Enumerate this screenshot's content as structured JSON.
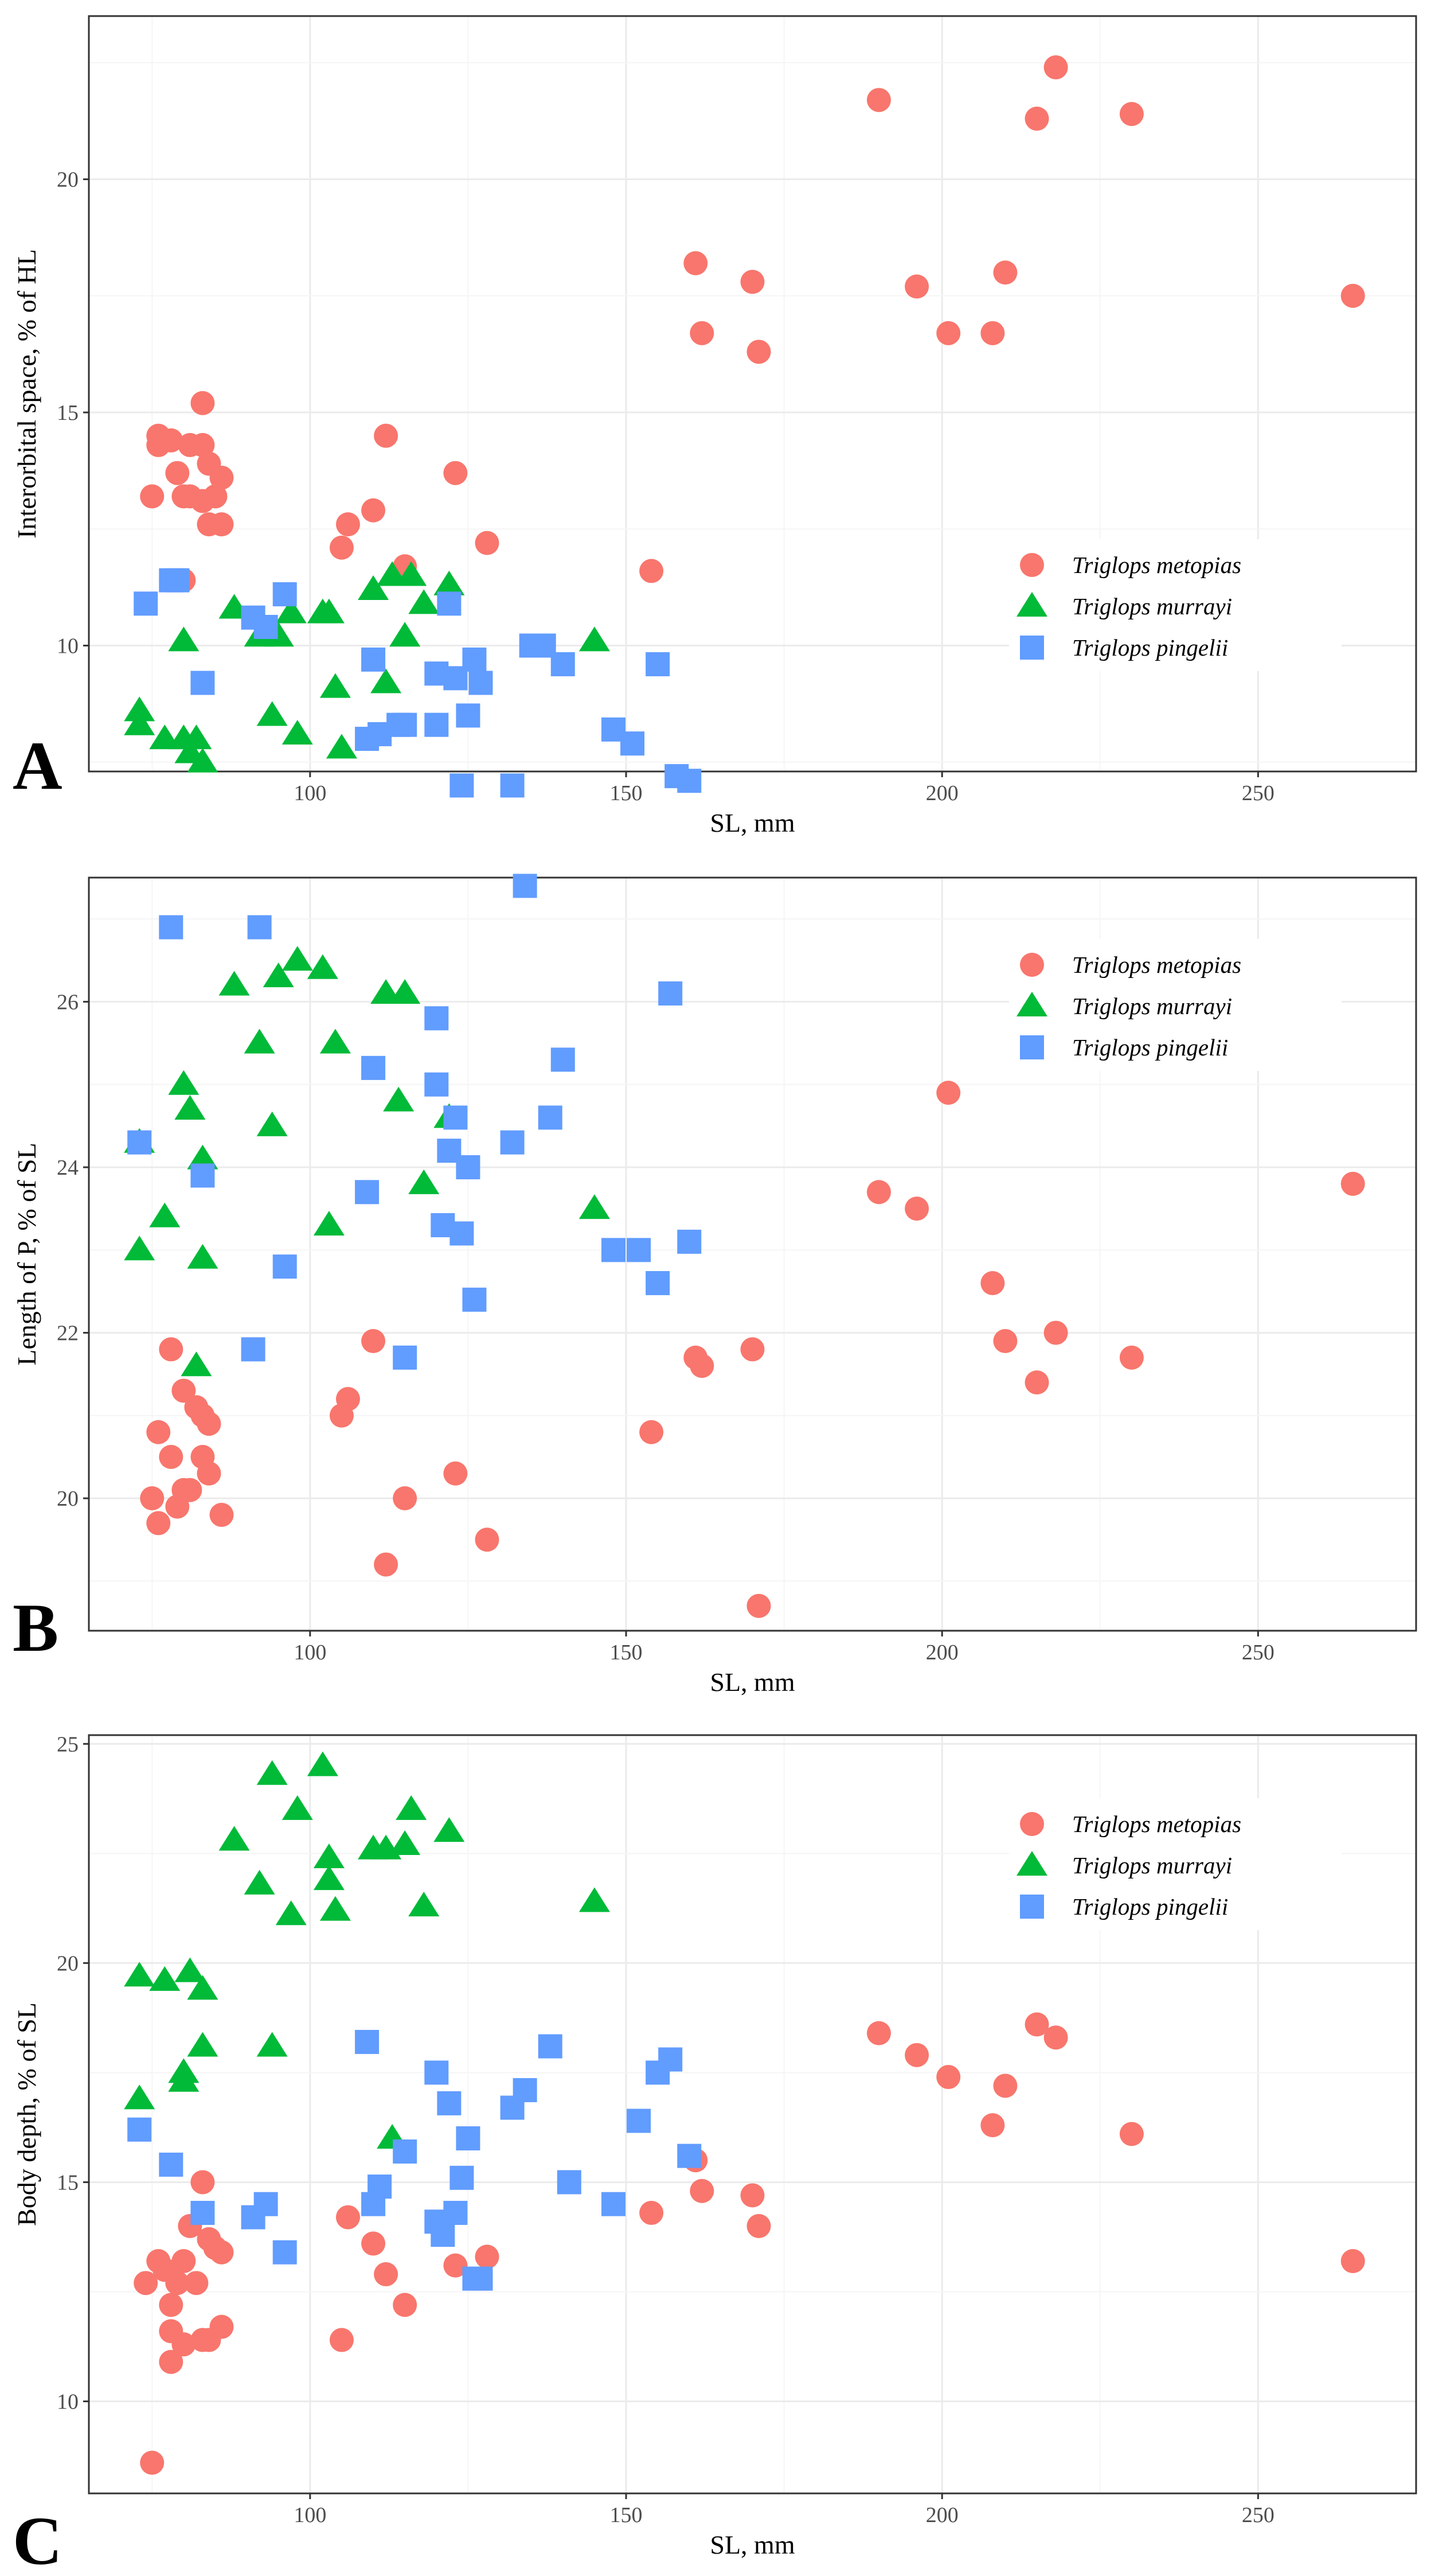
{
  "chart_data": [
    {
      "panel": "A",
      "type": "scatter",
      "xlabel": "SL, mm",
      "ylabel": "Interorbital space, % of HL",
      "xlim": [
        65,
        275
      ],
      "ylim": [
        7.3,
        23.5
      ],
      "xticks": [
        100,
        150,
        200,
        250
      ],
      "yticks": [
        10,
        15,
        20
      ],
      "grid": true,
      "legend_position": "right",
      "series": [
        {
          "name": "Triglops metopias",
          "color": "#F8766D",
          "marker": "circle",
          "x": [
            75,
            76,
            76,
            78,
            78,
            79,
            80,
            80,
            81,
            81,
            83,
            83,
            83,
            84,
            84,
            85,
            86,
            86,
            105,
            106,
            110,
            112,
            115,
            123,
            128,
            154,
            161,
            162,
            170,
            171,
            190,
            196,
            201,
            208,
            210,
            215,
            218,
            230,
            265
          ],
          "y": [
            13.2,
            14.5,
            14.3,
            11.4,
            14.4,
            13.7,
            13.2,
            11.4,
            14.3,
            13.2,
            15.2,
            14.3,
            13.1,
            12.6,
            13.9,
            13.2,
            13.6,
            12.6,
            12.1,
            12.6,
            12.9,
            14.5,
            11.7,
            13.7,
            12.2,
            11.6,
            18.2,
            16.7,
            17.8,
            16.3,
            21.7,
            17.7,
            16.7,
            16.7,
            18.0,
            21.3,
            22.4,
            21.4,
            17.5
          ]
        },
        {
          "name": "Triglops murrayi",
          "color": "#00BA38",
          "marker": "triangle",
          "x": [
            73,
            73,
            77,
            80,
            80,
            81,
            82,
            83,
            88,
            92,
            94,
            95,
            97,
            98,
            102,
            104,
            103,
            105,
            110,
            112,
            113,
            115,
            116,
            118,
            122,
            145
          ],
          "y": [
            8.6,
            8.3,
            8.0,
            10.1,
            8.0,
            7.7,
            8.0,
            7.5,
            10.8,
            10.2,
            8.5,
            10.2,
            10.7,
            8.1,
            10.7,
            9.1,
            10.7,
            7.8,
            11.2,
            9.2,
            11.5,
            10.2,
            11.5,
            10.9,
            11.3,
            10.1
          ]
        },
        {
          "name": "Triglops pingelii",
          "color": "#619CFF",
          "marker": "square",
          "x": [
            74,
            78,
            79,
            83,
            91,
            93,
            96,
            109,
            110,
            111,
            114,
            115,
            120,
            120,
            122,
            123,
            124,
            125,
            126,
            127,
            132,
            135,
            137,
            140,
            148,
            151,
            155,
            158,
            160
          ],
          "y": [
            10.9,
            11.4,
            11.4,
            9.2,
            10.6,
            10.4,
            11.1,
            8.0,
            9.7,
            8.1,
            8.3,
            8.3,
            9.4,
            8.3,
            10.9,
            9.3,
            7.0,
            8.5,
            9.7,
            9.2,
            7.0,
            10.0,
            10.0,
            9.6,
            8.2,
            7.9,
            9.6,
            7.2,
            7.1
          ]
        }
      ]
    },
    {
      "panel": "B",
      "type": "scatter",
      "xlabel": "SL, mm",
      "ylabel": "Length of P, % of SL",
      "xlim": [
        65,
        275
      ],
      "ylim": [
        18.4,
        27.5
      ],
      "xticks": [
        100,
        150,
        200,
        250
      ],
      "yticks": [
        20,
        22,
        24,
        26
      ],
      "grid": true,
      "legend_position": "top-right",
      "series": [
        {
          "name": "Triglops metopias",
          "color": "#F8766D",
          "marker": "circle",
          "x": [
            75,
            76,
            76,
            78,
            78,
            79,
            80,
            80,
            81,
            82,
            83,
            83,
            84,
            84,
            86,
            105,
            106,
            110,
            112,
            115,
            123,
            128,
            154,
            161,
            162,
            170,
            171,
            190,
            196,
            201,
            208,
            210,
            215,
            218,
            230,
            265
          ],
          "y": [
            20.0,
            19.7,
            20.8,
            21.8,
            20.5,
            19.9,
            20.1,
            21.3,
            20.1,
            21.1,
            20.5,
            21.0,
            20.3,
            20.9,
            19.8,
            21.0,
            21.2,
            21.9,
            19.2,
            20.0,
            20.3,
            19.5,
            20.8,
            21.7,
            21.6,
            21.8,
            18.7,
            23.7,
            23.5,
            24.9,
            22.6,
            21.9,
            21.4,
            22.0,
            21.7,
            23.8
          ]
        },
        {
          "name": "Triglops murrayi",
          "color": "#00BA38",
          "marker": "triangle",
          "x": [
            73,
            73,
            77,
            80,
            81,
            82,
            83,
            83,
            88,
            92,
            94,
            95,
            98,
            102,
            103,
            104,
            112,
            114,
            115,
            118,
            122,
            145
          ],
          "y": [
            24.3,
            23.0,
            23.4,
            25.0,
            24.7,
            21.6,
            22.9,
            24.1,
            26.2,
            25.5,
            24.5,
            26.3,
            26.5,
            26.4,
            23.3,
            25.5,
            26.1,
            24.8,
            26.1,
            23.8,
            24.6,
            23.5
          ]
        },
        {
          "name": "Triglops pingelii",
          "color": "#619CFF",
          "marker": "square",
          "x": [
            73,
            78,
            83,
            91,
            92,
            96,
            109,
            110,
            115,
            120,
            120,
            121,
            122,
            123,
            124,
            125,
            126,
            132,
            134,
            138,
            140,
            148,
            152,
            155,
            157,
            160
          ],
          "y": [
            24.3,
            26.9,
            23.9,
            21.8,
            26.9,
            22.8,
            23.7,
            25.2,
            21.7,
            25.8,
            25.0,
            23.3,
            24.2,
            24.6,
            23.2,
            24.0,
            22.4,
            24.3,
            27.4,
            24.6,
            25.3,
            23.0,
            23.0,
            22.6,
            26.1,
            23.1
          ]
        }
      ]
    },
    {
      "panel": "C",
      "type": "scatter",
      "xlabel": "SL, mm",
      "ylabel": "Body depth, % of SL",
      "xlim": [
        65,
        275
      ],
      "ylim": [
        7.9,
        25.2
      ],
      "xticks": [
        100,
        150,
        200,
        250
      ],
      "yticks": [
        10,
        15,
        20,
        25
      ],
      "grid": true,
      "legend_position": "top-right",
      "series": [
        {
          "name": "Triglops metopias",
          "color": "#F8766D",
          "marker": "circle",
          "x": [
            74,
            75,
            76,
            77,
            78,
            78,
            78,
            79,
            80,
            80,
            81,
            82,
            83,
            83,
            84,
            84,
            85,
            86,
            86,
            105,
            106,
            110,
            112,
            115,
            123,
            128,
            154,
            161,
            162,
            170,
            171,
            190,
            196,
            201,
            208,
            210,
            215,
            218,
            230,
            265
          ],
          "y": [
            12.7,
            8.6,
            13.2,
            13.0,
            11.6,
            10.9,
            12.2,
            12.7,
            13.2,
            11.3,
            14.0,
            12.7,
            15.0,
            11.4,
            13.7,
            11.4,
            13.5,
            11.7,
            13.4,
            11.4,
            14.2,
            13.6,
            12.9,
            12.2,
            13.1,
            13.3,
            14.3,
            15.5,
            14.8,
            14.7,
            14.0,
            18.4,
            17.9,
            17.4,
            16.3,
            17.2,
            18.6,
            18.3,
            16.1,
            13.2
          ]
        },
        {
          "name": "Triglops murrayi",
          "color": "#00BA38",
          "marker": "triangle",
          "x": [
            73,
            73,
            77,
            80,
            80,
            81,
            83,
            83,
            88,
            92,
            94,
            94,
            97,
            98,
            102,
            103,
            103,
            104,
            110,
            112,
            113,
            115,
            116,
            118,
            122,
            145
          ],
          "y": [
            19.7,
            16.9,
            19.6,
            17.5,
            17.3,
            19.8,
            19.4,
            18.1,
            22.8,
            21.8,
            18.1,
            24.3,
            21.1,
            23.5,
            24.5,
            21.9,
            22.4,
            21.2,
            22.6,
            22.6,
            16.0,
            22.7,
            23.5,
            21.3,
            23.0,
            21.4
          ]
        },
        {
          "name": "Triglops pingelii",
          "color": "#619CFF",
          "marker": "square",
          "x": [
            73,
            78,
            83,
            91,
            93,
            96,
            109,
            110,
            111,
            115,
            120,
            120,
            121,
            122,
            123,
            124,
            125,
            126,
            127,
            132,
            134,
            138,
            141,
            148,
            152,
            155,
            157,
            160
          ],
          "y": [
            16.2,
            15.4,
            14.3,
            14.2,
            14.5,
            13.4,
            18.2,
            14.5,
            14.9,
            15.7,
            17.5,
            14.1,
            13.8,
            16.8,
            14.3,
            15.1,
            16.0,
            12.8,
            12.8,
            16.7,
            17.1,
            18.1,
            15.0,
            14.5,
            16.4,
            17.5,
            17.8,
            15.6
          ]
        }
      ]
    }
  ]
}
